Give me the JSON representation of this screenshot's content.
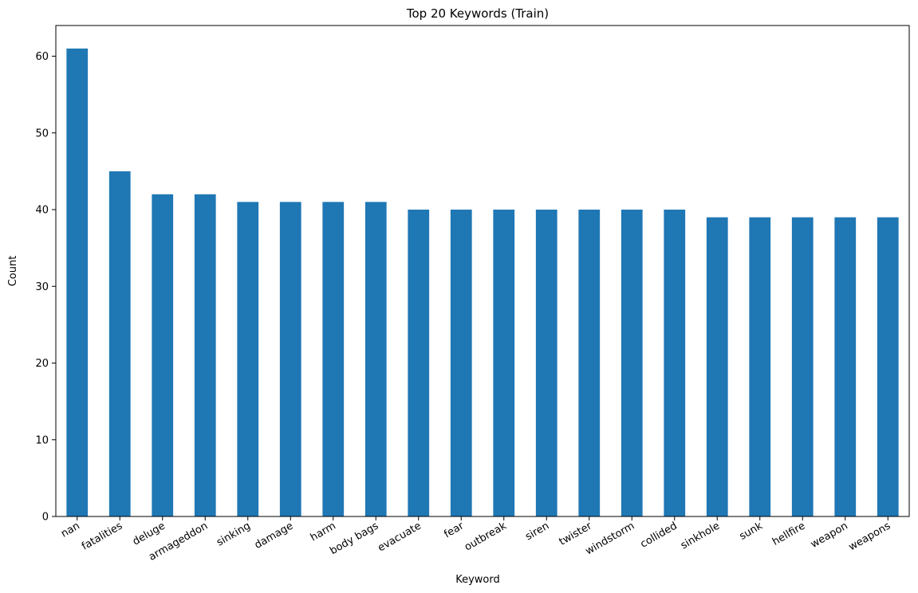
{
  "chart_data": {
    "type": "bar",
    "title": "Top 20 Keywords (Train)",
    "xlabel": "Keyword",
    "ylabel": "Count",
    "categories": [
      "nan",
      "fatalities",
      "deluge",
      "armageddon",
      "sinking",
      "damage",
      "harm",
      "body bags",
      "evacuate",
      "fear",
      "outbreak",
      "siren",
      "twister",
      "windstorm",
      "collided",
      "sinkhole",
      "sunk",
      "hellfire",
      "weapon",
      "weapons"
    ],
    "values": [
      61,
      45,
      42,
      42,
      41,
      41,
      41,
      41,
      40,
      40,
      40,
      40,
      40,
      40,
      40,
      39,
      39,
      39,
      39,
      39
    ],
    "ylim": [
      0,
      64
    ],
    "yticks": [
      0,
      10,
      20,
      30,
      40,
      50,
      60
    ],
    "bar_color": "#1f77b4",
    "grid": false,
    "legend": "none"
  }
}
